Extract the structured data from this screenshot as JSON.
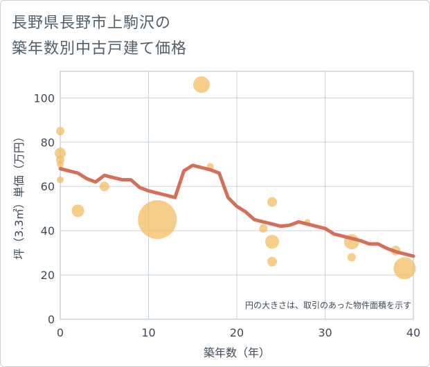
{
  "chart_data": {
    "type": "scatter",
    "title_lines": [
      "長野県長野市上駒沢の",
      "築年数別中古戸建て価格"
    ],
    "xlabel": "築年数（年）",
    "ylabel": "坪（3.3㎡）単価（万円）",
    "xlim": [
      0,
      40
    ],
    "ylim": [
      0,
      112
    ],
    "xticks": [
      0,
      10,
      20,
      30,
      40
    ],
    "yticks": [
      0,
      20,
      40,
      60,
      80,
      100
    ],
    "note": "円の大きさは、取引のあった物件面積を示す",
    "colors": {
      "bubble": "#f3bc64",
      "line": "#d4705a",
      "grid": "#c7d3dc"
    },
    "scatter": [
      {
        "x": 0,
        "y": 85,
        "s": 6
      },
      {
        "x": 0,
        "y": 75,
        "s": 8
      },
      {
        "x": 0,
        "y": 72,
        "s": 6
      },
      {
        "x": 0,
        "y": 70,
        "s": 5
      },
      {
        "x": 0,
        "y": 63,
        "s": 5
      },
      {
        "x": 2,
        "y": 49,
        "s": 9
      },
      {
        "x": 5,
        "y": 60,
        "s": 7
      },
      {
        "x": 11,
        "y": 45,
        "s": 28
      },
      {
        "x": 16,
        "y": 106,
        "s": 12
      },
      {
        "x": 17,
        "y": 69,
        "s": 5
      },
      {
        "x": 23,
        "y": 41,
        "s": 6
      },
      {
        "x": 24,
        "y": 53,
        "s": 7
      },
      {
        "x": 24,
        "y": 35,
        "s": 10
      },
      {
        "x": 24,
        "y": 26,
        "s": 7
      },
      {
        "x": 28,
        "y": 44,
        "s": 4
      },
      {
        "x": 33,
        "y": 35,
        "s": 11
      },
      {
        "x": 33,
        "y": 28,
        "s": 6
      },
      {
        "x": 38,
        "y": 31,
        "s": 7
      },
      {
        "x": 39,
        "y": 23,
        "s": 16
      }
    ],
    "trend": {
      "x": [
        0,
        1,
        2,
        3,
        4,
        5,
        6,
        7,
        8,
        9,
        10,
        11,
        12,
        13,
        14,
        15,
        16,
        17,
        18,
        19,
        20,
        21,
        22,
        23,
        24,
        25,
        26,
        27,
        28,
        29,
        30,
        31,
        32,
        33,
        34,
        35,
        36,
        37,
        38,
        39,
        40
      ],
      "y": [
        68,
        67,
        66,
        63.5,
        62,
        65,
        64,
        63,
        63,
        59.5,
        58,
        57,
        56,
        55,
        67,
        69.5,
        68.5,
        67.5,
        66,
        55,
        51,
        48.5,
        45,
        44,
        43,
        42,
        42.5,
        44,
        43,
        42,
        41,
        38.5,
        37.5,
        36.5,
        35.5,
        34,
        34,
        32,
        30.5,
        29.5,
        28.5
      ]
    }
  }
}
